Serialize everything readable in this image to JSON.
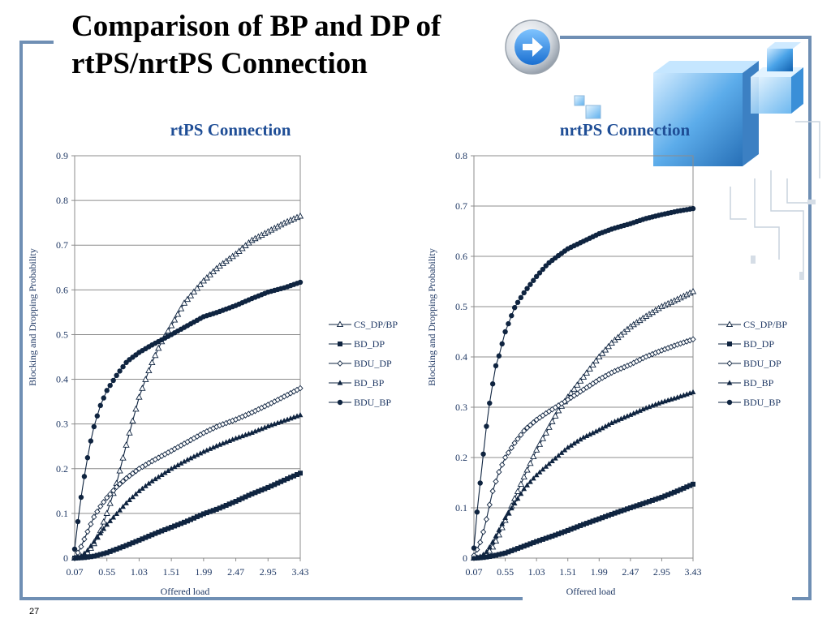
{
  "slide": {
    "title_line1": "Comparison of BP and DP of",
    "title_line2": "rtPS/nrtPS Connection",
    "page_number": "27",
    "frame_color": "#6f8fb4"
  },
  "icons": {
    "nav": "arrow-right-circle-icon",
    "decoration": "glass-cubes-circuit-decoration"
  },
  "colors": {
    "title": "#1f4e96",
    "series": "#0f2440",
    "grid": "#8c8c8c",
    "text": "#1f3864"
  },
  "chart_data": [
    {
      "type": "line",
      "title": "rtPS Connection",
      "xlabel": "Offered load",
      "ylabel": "Blocking and Dropping Probability",
      "x_range": [
        0.07,
        3.43
      ],
      "x_ticks": [
        "0.07",
        "0.55",
        "1.03",
        "1.51",
        "1.99",
        "2.47",
        "2.95",
        "3.43"
      ],
      "y_ticks": [
        "0",
        "0.1",
        "0.2",
        "0.3",
        "0.4",
        "0.5",
        "0.6",
        "0.7",
        "0.8",
        "0.9"
      ],
      "ylim": [
        0,
        0.9
      ],
      "grid": "horizontal",
      "legend_position": "right",
      "series": [
        {
          "name": "CS_DP/BP",
          "marker": "triangle-open",
          "x": [
            0.07,
            0.15,
            0.25,
            0.35,
            0.45,
            0.55,
            0.7,
            0.85,
            1.03,
            1.2,
            1.35,
            1.51,
            1.7,
            1.99,
            2.2,
            2.47,
            2.7,
            2.95,
            3.2,
            3.43
          ],
          "y": [
            0,
            0.002,
            0.01,
            0.03,
            0.06,
            0.1,
            0.17,
            0.26,
            0.36,
            0.43,
            0.48,
            0.52,
            0.57,
            0.62,
            0.65,
            0.68,
            0.71,
            0.73,
            0.75,
            0.765
          ]
        },
        {
          "name": "BD_DP",
          "marker": "square",
          "x": [
            0.07,
            0.2,
            0.35,
            0.55,
            0.8,
            1.03,
            1.3,
            1.51,
            1.75,
            1.99,
            2.2,
            2.47,
            2.7,
            2.95,
            3.2,
            3.43
          ],
          "y": [
            0,
            0.001,
            0.004,
            0.012,
            0.026,
            0.04,
            0.057,
            0.069,
            0.083,
            0.099,
            0.11,
            0.127,
            0.143,
            0.158,
            0.175,
            0.19
          ]
        },
        {
          "name": "BDU_DP",
          "marker": "diamond-open",
          "x": [
            0.07,
            0.15,
            0.25,
            0.35,
            0.45,
            0.55,
            0.7,
            0.85,
            1.03,
            1.2,
            1.51,
            1.75,
            1.99,
            2.2,
            2.47,
            2.7,
            2.95,
            3.2,
            3.43
          ],
          "y": [
            0,
            0.02,
            0.055,
            0.09,
            0.115,
            0.135,
            0.16,
            0.18,
            0.2,
            0.215,
            0.24,
            0.26,
            0.28,
            0.295,
            0.31,
            0.325,
            0.343,
            0.362,
            0.38
          ]
        },
        {
          "name": "BD_BP",
          "marker": "triangle",
          "x": [
            0.07,
            0.15,
            0.25,
            0.35,
            0.45,
            0.55,
            0.7,
            0.85,
            1.03,
            1.2,
            1.51,
            1.75,
            1.99,
            2.2,
            2.47,
            2.7,
            2.95,
            3.2,
            3.43
          ],
          "y": [
            0,
            0.003,
            0.015,
            0.035,
            0.055,
            0.075,
            0.1,
            0.125,
            0.15,
            0.17,
            0.2,
            0.22,
            0.238,
            0.252,
            0.268,
            0.28,
            0.295,
            0.308,
            0.32
          ]
        },
        {
          "name": "BDU_BP",
          "marker": "circle",
          "x": [
            0.07,
            0.1,
            0.15,
            0.2,
            0.25,
            0.3,
            0.35,
            0.45,
            0.55,
            0.7,
            0.85,
            1.03,
            1.2,
            1.35,
            1.51,
            1.75,
            1.99,
            2.2,
            2.47,
            2.7,
            2.95,
            3.2,
            3.43
          ],
          "y": [
            0.02,
            0.06,
            0.12,
            0.17,
            0.215,
            0.255,
            0.29,
            0.34,
            0.375,
            0.41,
            0.44,
            0.46,
            0.475,
            0.487,
            0.5,
            0.52,
            0.54,
            0.55,
            0.565,
            0.58,
            0.595,
            0.605,
            0.617
          ]
        }
      ]
    },
    {
      "type": "line",
      "title": "nrtPS Connection",
      "xlabel": "Offered load",
      "ylabel": "Blocking and Dropping Probability",
      "x_range": [
        0.07,
        3.43
      ],
      "x_ticks": [
        "0.07",
        "0.55",
        "1.03",
        "1.51",
        "1.99",
        "2.47",
        "2.95",
        "3.43"
      ],
      "y_ticks": [
        "0",
        "0.1",
        "0.2",
        "0.3",
        "0.4",
        "0.5",
        "0.6",
        "0.7",
        "0.8"
      ],
      "ylim": [
        0,
        0.8
      ],
      "grid": "horizontal",
      "legend_position": "right",
      "series": [
        {
          "name": "CS_DP/BP",
          "marker": "triangle-open",
          "x": [
            0.07,
            0.15,
            0.25,
            0.35,
            0.45,
            0.55,
            0.7,
            0.85,
            1.03,
            1.2,
            1.35,
            1.51,
            1.75,
            1.99,
            2.2,
            2.47,
            2.7,
            2.95,
            3.2,
            3.43
          ],
          "y": [
            0,
            0.001,
            0.005,
            0.02,
            0.045,
            0.075,
            0.12,
            0.165,
            0.215,
            0.255,
            0.29,
            0.32,
            0.36,
            0.4,
            0.43,
            0.46,
            0.48,
            0.5,
            0.515,
            0.53
          ]
        },
        {
          "name": "BD_DP",
          "marker": "square",
          "x": [
            0.07,
            0.2,
            0.35,
            0.55,
            0.8,
            1.03,
            1.3,
            1.51,
            1.75,
            1.99,
            2.2,
            2.47,
            2.7,
            2.95,
            3.2,
            3.43
          ],
          "y": [
            0,
            0.001,
            0.004,
            0.01,
            0.022,
            0.033,
            0.045,
            0.055,
            0.067,
            0.078,
            0.088,
            0.1,
            0.11,
            0.121,
            0.134,
            0.147
          ]
        },
        {
          "name": "BDU_DP",
          "marker": "diamond-open",
          "x": [
            0.07,
            0.15,
            0.2,
            0.25,
            0.3,
            0.35,
            0.45,
            0.55,
            0.7,
            0.85,
            1.03,
            1.2,
            1.51,
            1.75,
            1.99,
            2.2,
            2.47,
            2.7,
            2.95,
            3.2,
            3.43
          ],
          "y": [
            0.005,
            0.025,
            0.045,
            0.07,
            0.1,
            0.13,
            0.17,
            0.2,
            0.23,
            0.255,
            0.275,
            0.29,
            0.315,
            0.335,
            0.355,
            0.37,
            0.385,
            0.4,
            0.413,
            0.425,
            0.435
          ]
        },
        {
          "name": "BD_BP",
          "marker": "triangle",
          "x": [
            0.07,
            0.15,
            0.25,
            0.35,
            0.45,
            0.55,
            0.7,
            0.85,
            1.03,
            1.2,
            1.51,
            1.75,
            1.99,
            2.2,
            2.47,
            2.7,
            2.95,
            3.2,
            3.43
          ],
          "y": [
            0,
            0.002,
            0.01,
            0.03,
            0.055,
            0.08,
            0.11,
            0.14,
            0.165,
            0.185,
            0.22,
            0.24,
            0.255,
            0.27,
            0.285,
            0.298,
            0.31,
            0.32,
            0.33
          ]
        },
        {
          "name": "BDU_BP",
          "marker": "circle",
          "x": [
            0.07,
            0.1,
            0.15,
            0.2,
            0.25,
            0.3,
            0.35,
            0.4,
            0.45,
            0.55,
            0.7,
            0.85,
            1.03,
            1.2,
            1.35,
            1.51,
            1.75,
            1.99,
            2.2,
            2.47,
            2.7,
            2.95,
            3.2,
            3.43
          ],
          "y": [
            0.02,
            0.07,
            0.13,
            0.19,
            0.25,
            0.3,
            0.34,
            0.38,
            0.4,
            0.45,
            0.5,
            0.53,
            0.56,
            0.585,
            0.6,
            0.615,
            0.63,
            0.645,
            0.655,
            0.665,
            0.675,
            0.683,
            0.69,
            0.695
          ]
        }
      ]
    }
  ]
}
